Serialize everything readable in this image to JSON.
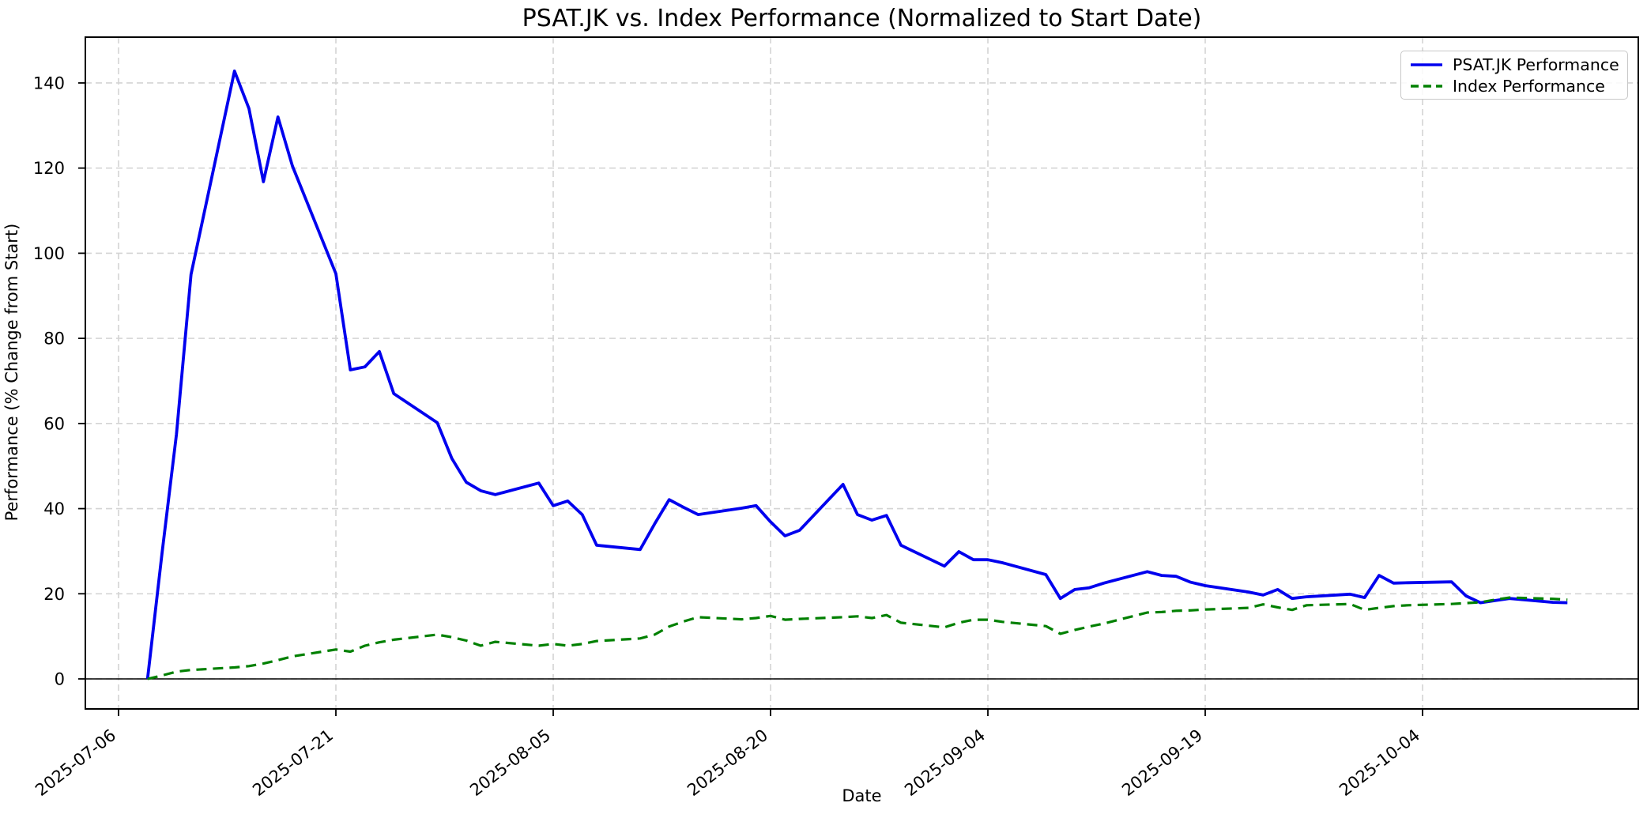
{
  "chart_data": {
    "type": "line",
    "title": "PSAT.JK vs. Index Performance (Normalized to Start Date)",
    "xlabel": "Date",
    "ylabel": "Performance (% Change from Start)",
    "grid": true,
    "legend_position": "upper right",
    "zero_line": true,
    "xlim": [
      "2025-07-04",
      "2025-10-19"
    ],
    "ylim": [
      -7,
      151
    ],
    "x_tick_labels": [
      "2025-07-06",
      "2025-07-21",
      "2025-08-05",
      "2025-08-20",
      "2025-09-04",
      "2025-09-19",
      "2025-10-04"
    ],
    "y_ticks": [
      0,
      20,
      40,
      60,
      80,
      100,
      120,
      140
    ],
    "dates": [
      "2025-07-08",
      "2025-07-09",
      "2025-07-10",
      "2025-07-11",
      "2025-07-14",
      "2025-07-15",
      "2025-07-16",
      "2025-07-17",
      "2025-07-18",
      "2025-07-21",
      "2025-07-22",
      "2025-07-23",
      "2025-07-24",
      "2025-07-25",
      "2025-07-28",
      "2025-07-29",
      "2025-07-30",
      "2025-07-31",
      "2025-08-01",
      "2025-08-04",
      "2025-08-05",
      "2025-08-06",
      "2025-08-07",
      "2025-08-08",
      "2025-08-11",
      "2025-08-12",
      "2025-08-13",
      "2025-08-14",
      "2025-08-15",
      "2025-08-18",
      "2025-08-19",
      "2025-08-20",
      "2025-08-21",
      "2025-08-22",
      "2025-08-25",
      "2025-08-26",
      "2025-08-27",
      "2025-08-28",
      "2025-08-29",
      "2025-09-01",
      "2025-09-02",
      "2025-09-03",
      "2025-09-04",
      "2025-09-05",
      "2025-09-08",
      "2025-09-09",
      "2025-09-10",
      "2025-09-11",
      "2025-09-12",
      "2025-09-15",
      "2025-09-16",
      "2025-09-17",
      "2025-09-18",
      "2025-09-19",
      "2025-09-22",
      "2025-09-23",
      "2025-09-24",
      "2025-09-25",
      "2025-09-26",
      "2025-09-29",
      "2025-09-30",
      "2025-10-01",
      "2025-10-02",
      "2025-10-03",
      "2025-10-06",
      "2025-10-07",
      "2025-10-08",
      "2025-10-09",
      "2025-10-10",
      "2025-10-13",
      "2025-10-14"
    ],
    "series": [
      {
        "name": "PSAT.JK Performance",
        "color": "#0000ee",
        "style": "solid",
        "values": [
          0,
          29.5,
          57.5,
          95,
          142.8,
          134,
          116.8,
          132,
          120.5,
          95.2,
          72.6,
          73.3,
          76.9,
          67,
          60.2,
          51.8,
          46.2,
          44.2,
          43.3,
          46,
          40.7,
          41.8,
          38.6,
          31.4,
          30.4,
          36.4,
          42.1,
          40.3,
          38.6,
          40.1,
          40.7,
          36.9,
          33.6,
          34.9,
          45.7,
          38.6,
          37.3,
          38.4,
          31.4,
          26.5,
          29.9,
          28,
          28,
          27.3,
          24.5,
          18.9,
          21,
          21.4,
          22.5,
          25.2,
          24.3,
          24.1,
          22.7,
          21.9,
          20.4,
          19.7,
          21,
          18.9,
          19.3,
          19.9,
          19.1,
          24.3,
          22.5,
          22.6,
          22.8,
          19.5,
          17.9,
          18.4,
          18.9,
          18,
          17.9
        ]
      },
      {
        "name": "Index Performance",
        "color": "#008000",
        "style": "dashed",
        "values": [
          0,
          0.8,
          1.7,
          2.1,
          2.7,
          3,
          3.6,
          4.4,
          5.3,
          6.9,
          6.4,
          7.8,
          8.6,
          9.2,
          10.4,
          9.8,
          9,
          7.8,
          8.7,
          7.8,
          8.2,
          7.8,
          8.2,
          8.9,
          9.5,
          10.4,
          12.3,
          13.5,
          14.5,
          14,
          14.3,
          14.8,
          13.9,
          14.1,
          14.5,
          14.7,
          14.3,
          15,
          13.2,
          12.1,
          13.2,
          13.9,
          13.9,
          13.4,
          12.4,
          10.6,
          11.5,
          12.3,
          13,
          15.6,
          15.7,
          16,
          16.1,
          16.3,
          16.7,
          17.5,
          16.8,
          16.2,
          17.3,
          17.6,
          16.2,
          16.7,
          17.1,
          17.3,
          17.6,
          17.8,
          18,
          18.6,
          19.1,
          18.8,
          18.6
        ]
      }
    ]
  }
}
